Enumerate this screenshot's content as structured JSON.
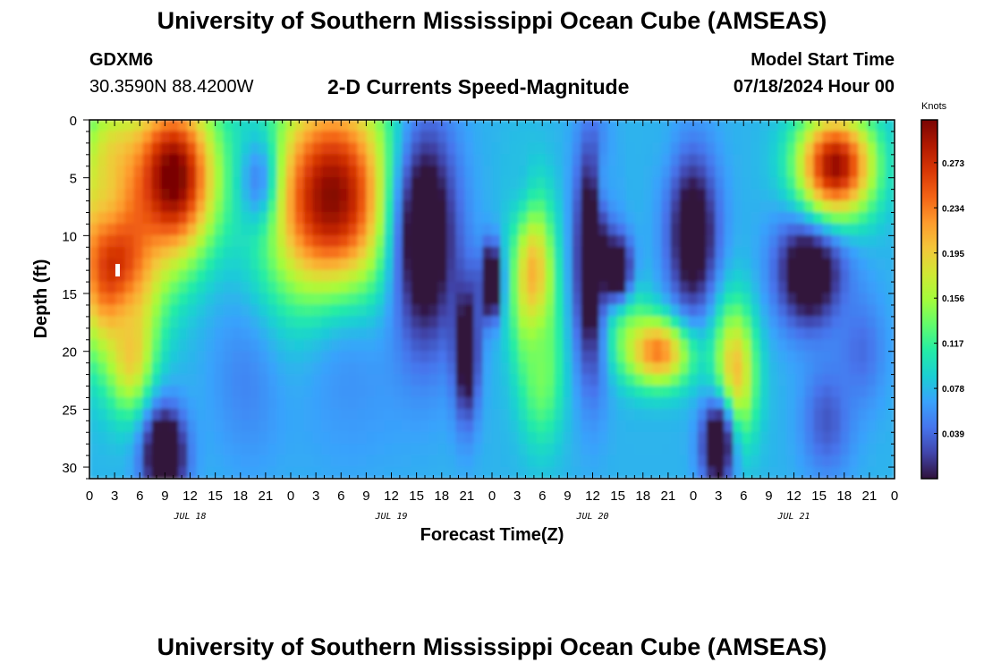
{
  "header": {
    "title": "University of Southern Mississippi Ocean Cube (AMSEAS)",
    "station_id": "GDXM6",
    "coordinates": "30.3590N  88.4200W",
    "subtitle": "2-D Currents Speed-Magnitude",
    "model_start_label": "Model Start Time",
    "model_start_value": "07/18/2024 Hour 00"
  },
  "footer": {
    "title": "University of Southern Mississippi Ocean Cube (AMSEAS)"
  },
  "chart_data": {
    "type": "heatmap",
    "title": "2-D Currents Speed-Magnitude",
    "xlabel": "Forecast Time(Z)",
    "ylabel": "Depth (ft)",
    "colorbar_label": "Knots",
    "x_tick_labels": [
      "0",
      "3",
      "6",
      "9",
      "12",
      "15",
      "18",
      "21",
      "0",
      "3",
      "6",
      "9",
      "12",
      "15",
      "18",
      "21",
      "0",
      "3",
      "6",
      "9",
      "12",
      "15",
      "18",
      "21",
      "0",
      "3",
      "6",
      "9",
      "12",
      "15",
      "18",
      "21",
      "0"
    ],
    "x_hours": [
      0,
      3,
      6,
      9,
      12,
      15,
      18,
      21,
      24,
      27,
      30,
      33,
      36,
      39,
      42,
      45,
      48,
      51,
      54,
      57,
      60,
      63,
      66,
      69,
      72,
      75,
      78,
      81,
      84,
      87,
      90,
      93,
      96
    ],
    "x_range_hours": [
      0,
      96
    ],
    "day_labels": [
      {
        "label": "JUL 18",
        "hour": 12
      },
      {
        "label": "JUL 19",
        "hour": 36
      },
      {
        "label": "JUL 20",
        "hour": 60
      },
      {
        "label": "JUL 21",
        "hour": 84
      }
    ],
    "y_tick_labels": [
      "0",
      "5",
      "10",
      "15",
      "20",
      "25",
      "30"
    ],
    "y_ticks": [
      0,
      5,
      10,
      15,
      20,
      25,
      30
    ],
    "y_range": [
      0,
      31
    ],
    "y_inverted": true,
    "colorbar_ticks": [
      0.039,
      0.078,
      0.117,
      0.156,
      0.195,
      0.234,
      0.273
    ],
    "colorbar_tick_labels": [
      "0.039",
      "0.078",
      "0.117",
      "0.156",
      "0.195",
      "0.234",
      "0.273"
    ],
    "color_range": [
      0.0,
      0.31
    ],
    "colormap": [
      "#30123b",
      "#4145ab",
      "#4675ed",
      "#39a2fc",
      "#1bcfd4",
      "#24eca6",
      "#61fc6c",
      "#a4fc3b",
      "#d1e834",
      "#f3c63a",
      "#fe9b2d",
      "#f36315",
      "#d93806",
      "#b11901",
      "#7a0403"
    ],
    "blobs": [
      {
        "t": 3,
        "d": 12,
        "rt": 5,
        "rd": 8,
        "v": 0.29
      },
      {
        "t": 2.5,
        "d": 4,
        "rt": 3.5,
        "rd": 6,
        "v": 0.18
      },
      {
        "t": 10,
        "d": 5,
        "rt": 5,
        "rd": 7,
        "v": 0.32
      },
      {
        "t": 5,
        "d": 20,
        "rt": 2.5,
        "rd": 5,
        "v": 0.2
      },
      {
        "t": 9,
        "d": 29,
        "rt": 2.5,
        "rd": 4,
        "v": -0.06
      },
      {
        "t": 21,
        "d": 5.5,
        "rt": 2.5,
        "rd": 4,
        "v": -0.04
      },
      {
        "t": 19,
        "d": 22,
        "rt": 4.5,
        "rd": 8,
        "v": 0.05
      },
      {
        "t": 29,
        "d": 7,
        "rt": 7.5,
        "rd": 9.5,
        "v": 0.31
      },
      {
        "t": 31,
        "d": 23,
        "rt": 7,
        "rd": 8,
        "v": 0.06
      },
      {
        "t": 40,
        "d": 10,
        "rt": 4,
        "rd": 10,
        "v": -0.04
      },
      {
        "t": 45,
        "d": 20,
        "rt": 1.5,
        "rd": 6,
        "v": -0.03
      },
      {
        "t": 48,
        "d": 14,
        "rt": 1.2,
        "rd": 3,
        "v": -0.08
      },
      {
        "t": 53,
        "d": 14,
        "rt": 2.5,
        "rd": 7,
        "v": 0.22
      },
      {
        "t": 54,
        "d": 22,
        "rt": 2.5,
        "rd": 6,
        "v": 0.14
      },
      {
        "t": 51,
        "d": 4,
        "rt": 2,
        "rd": 4,
        "v": 0.08
      },
      {
        "t": 60,
        "d": 12,
        "rt": 2,
        "rd": 10,
        "v": -0.05
      },
      {
        "t": 62,
        "d": 5,
        "rt": 1.5,
        "rd": 4,
        "v": 0.07
      },
      {
        "t": 64,
        "d": 17,
        "rt": 2.5,
        "rd": 4,
        "v": 0.12
      },
      {
        "t": 63,
        "d": 13,
        "rt": 1.8,
        "rd": 3,
        "v": -0.04
      },
      {
        "t": 68,
        "d": 20,
        "rt": 4,
        "rd": 3,
        "v": 0.24
      },
      {
        "t": 69,
        "d": 3,
        "rt": 1.5,
        "rd": 3,
        "v": 0.08
      },
      {
        "t": 72,
        "d": 10,
        "rt": 3,
        "rd": 7,
        "v": -0.03
      },
      {
        "t": 77,
        "d": 22,
        "rt": 2.5,
        "rd": 6,
        "v": 0.21
      },
      {
        "t": 75,
        "d": 28,
        "rt": 2,
        "rd": 4,
        "v": -0.04
      },
      {
        "t": 86,
        "d": 13,
        "rt": 4,
        "rd": 5,
        "v": -0.04
      },
      {
        "t": 89,
        "d": 4,
        "rt": 4.5,
        "rd": 4.5,
        "v": 0.3
      },
      {
        "t": 88,
        "d": 26,
        "rt": 3,
        "rd": 5,
        "v": 0.03
      },
      {
        "t": 92,
        "d": 20,
        "rt": 3,
        "rd": 5,
        "v": 0.04
      }
    ],
    "base_value": 0.075
  }
}
